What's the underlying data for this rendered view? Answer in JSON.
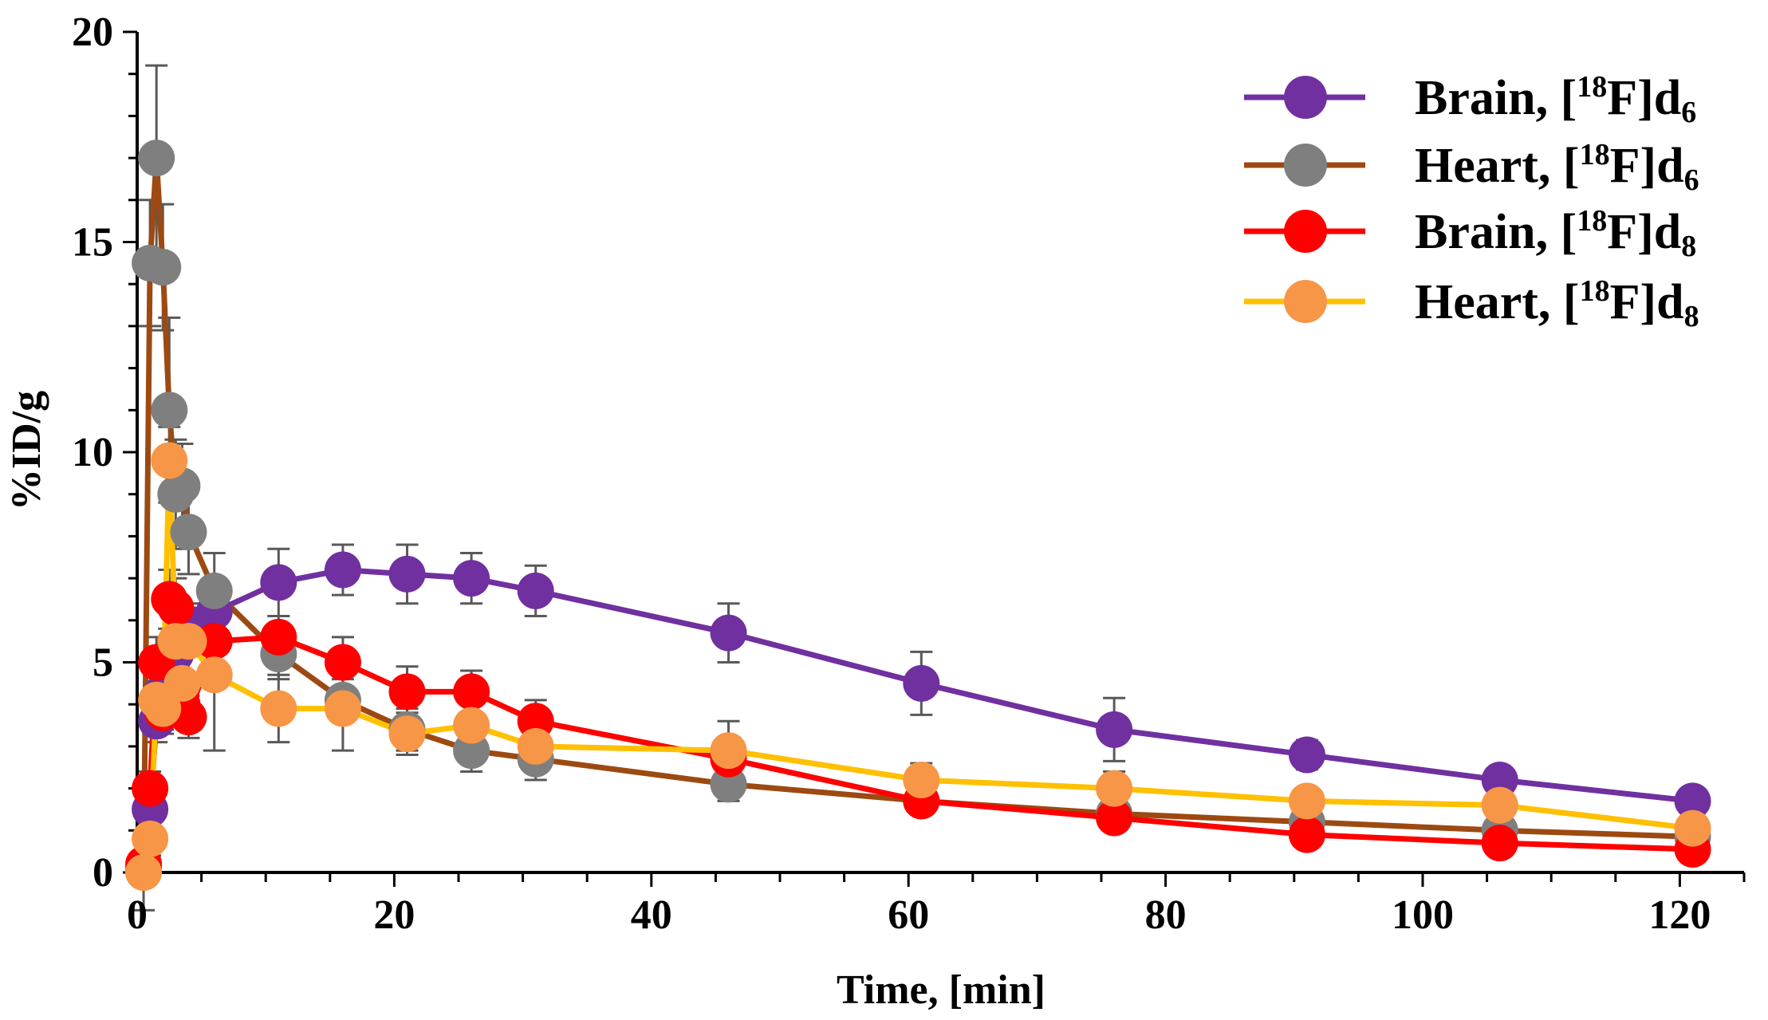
{
  "chart_data": {
    "type": "line",
    "title": "",
    "xlabel": "Time, [min]",
    "ylabel": "%ID/g",
    "xlim": [
      0,
      125
    ],
    "ylim": [
      0,
      20
    ],
    "x_ticks": [
      0,
      20,
      40,
      60,
      80,
      100,
      120
    ],
    "y_ticks": [
      0,
      5,
      10,
      15,
      20
    ],
    "legend_position": "top-right",
    "series": [
      {
        "name": "Brain, [18F]d6",
        "label_main": "Brain, [",
        "label_sup": "18",
        "label_tail": "F]d",
        "label_sub": "6",
        "line_color": "#7030A0",
        "marker_color": "#7030A0",
        "x": [
          0.5,
          1,
          1.5,
          2,
          2.5,
          3,
          3.5,
          4,
          6,
          11,
          16,
          21,
          26,
          31,
          46,
          61,
          76,
          91,
          106,
          121
        ],
        "y": [
          0.1,
          1.5,
          3.6,
          4.3,
          5.0,
          5.2,
          5.6,
          5.9,
          6.2,
          6.9,
          7.2,
          7.1,
          7.0,
          6.7,
          5.7,
          4.5,
          3.4,
          2.8,
          2.2,
          1.7
        ],
        "err": [
          0,
          0.6,
          0.5,
          0.5,
          0.5,
          0.5,
          0.5,
          0.5,
          0.6,
          0.8,
          0.6,
          0.7,
          0.6,
          0.6,
          0.7,
          0.75,
          0.75,
          0.35,
          0.3,
          0.25
        ]
      },
      {
        "name": "Heart, [18F]d6",
        "label_main": "Heart, [",
        "label_sup": "18",
        "label_tail": "F]d",
        "label_sub": "6",
        "line_color": "#9C4A12",
        "marker_color": "#7F7F7F",
        "x": [
          0.5,
          1,
          1.5,
          2,
          2.5,
          3,
          3.5,
          4,
          6,
          11,
          16,
          21,
          26,
          31,
          46,
          61,
          76,
          91,
          106,
          121
        ],
        "y": [
          0.1,
          14.5,
          17.0,
          14.4,
          11.0,
          9.0,
          9.2,
          8.1,
          6.7,
          5.2,
          4.1,
          3.4,
          2.9,
          2.7,
          2.1,
          1.7,
          1.4,
          1.2,
          1.0,
          0.85
        ],
        "err": [
          0,
          1.5,
          2.2,
          1.5,
          2.2,
          1.3,
          1.0,
          1.0,
          0.9,
          0.6,
          0.5,
          0.5,
          0.5,
          0.5,
          0.4,
          0.3,
          0.3,
          0.3,
          0.2,
          0.2
        ]
      },
      {
        "name": "Brain, [18F]d8",
        "label_main": "Brain, [",
        "label_sup": "18",
        "label_tail": "F]d",
        "label_sub": "8",
        "line_color": "#FF0000",
        "marker_color": "#FF0000",
        "x": [
          0.5,
          1,
          1.5,
          2,
          2.5,
          3,
          3.5,
          4,
          6,
          11,
          16,
          21,
          26,
          31,
          46,
          61,
          76,
          91,
          106,
          121
        ],
        "y": [
          0.2,
          2.0,
          5.0,
          3.8,
          6.5,
          6.3,
          4.0,
          3.7,
          5.5,
          5.6,
          5.0,
          4.3,
          4.3,
          3.6,
          2.7,
          1.7,
          1.3,
          0.9,
          0.7,
          0.55
        ],
        "err": [
          0,
          0.4,
          0.6,
          0.5,
          0.7,
          0.7,
          0.5,
          0.5,
          0.6,
          0.5,
          0.6,
          0.6,
          0.5,
          0.5,
          0.4,
          0.3,
          0.25,
          0.2,
          0.15,
          0.12
        ]
      },
      {
        "name": "Heart, [18F]d8",
        "label_main": "Heart, [",
        "label_sup": "18",
        "label_tail": "F]d",
        "label_sub": "8",
        "line_color": "#FFC000",
        "marker_color": "#F79646",
        "x": [
          0.5,
          1,
          1.5,
          2,
          2.5,
          3,
          3.5,
          4,
          6,
          11,
          16,
          21,
          26,
          31,
          46,
          61,
          76,
          91,
          106,
          121
        ],
        "y": [
          0.0,
          0.8,
          4.1,
          3.9,
          9.8,
          5.5,
          4.5,
          5.5,
          4.7,
          3.9,
          3.9,
          3.3,
          3.5,
          3.0,
          2.9,
          2.2,
          2.0,
          1.7,
          1.6,
          1.05
        ],
        "err": [
          0.9,
          0.4,
          0.8,
          0.5,
          0.8,
          1.0,
          0.8,
          0.8,
          1.8,
          0.8,
          1.0,
          0.5,
          0.5,
          0.5,
          0.7,
          0.4,
          0.4,
          0.3,
          0.3,
          0.2
        ]
      }
    ]
  }
}
